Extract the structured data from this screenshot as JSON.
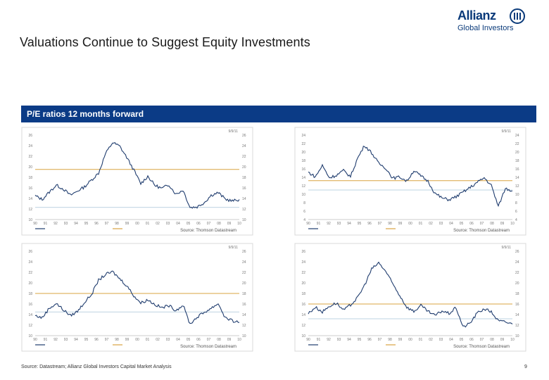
{
  "slide": {
    "title": "Valuations Continue to Suggest Equity Investments",
    "panel_title": "P/E ratios 12 months forward",
    "source": "Source: Datastream; Allianz Global Investors Capital Market Analysis",
    "page_number": "9"
  },
  "logo": {
    "brand": "Allianz",
    "sub": "Global Investors"
  },
  "colors": {
    "panel_bar": "#0b3b86",
    "series": "#1f3c6e",
    "average": "#d9a441",
    "band": "#a8c4d6"
  },
  "chart_data": [
    {
      "type": "line",
      "y_ticks": [
        "10",
        "12",
        "14",
        "16",
        "18",
        "20",
        "22",
        "24",
        "26"
      ],
      "x_ticks": [
        "90",
        "91",
        "92",
        "93",
        "94",
        "95",
        "96",
        "97",
        "98",
        "99",
        "00",
        "01",
        "02",
        "03",
        "04",
        "05",
        "06",
        "07",
        "08",
        "09",
        "10"
      ],
      "ylim": [
        10,
        26
      ],
      "average": 19.5,
      "band": 12.3,
      "corner_label": "9/9/11",
      "source_text": "Source: Thomson Datastream",
      "series": [
        {
          "values": [
            14.5,
            13.8,
            15.2,
            16.5,
            15.8,
            14.6,
            15.4,
            16.2,
            17.5,
            18.8,
            22.5,
            24.6,
            23.9,
            21.8,
            19.4,
            16.8,
            18.2,
            16.5,
            15.9,
            16.6,
            14.8,
            15.6,
            12.3,
            12.4,
            13.2,
            14.6,
            15.1,
            13.9,
            13.5,
            13.8
          ]
        }
      ]
    },
    {
      "type": "line",
      "y_ticks": [
        "4",
        "6",
        "8",
        "10",
        "12",
        "14",
        "16",
        "18",
        "20",
        "22",
        "24"
      ],
      "x_ticks": [
        "90",
        "91",
        "92",
        "93",
        "94",
        "95",
        "96",
        "97",
        "98",
        "99",
        "00",
        "01",
        "02",
        "03",
        "04",
        "05",
        "06",
        "07",
        "08",
        "09",
        "10"
      ],
      "ylim": [
        4,
        24
      ],
      "average": 13.2,
      "band": 11.0,
      "corner_label": "9/9/11",
      "source_text": "Source: Thomson Datastream",
      "series": [
        {
          "values": [
            15.2,
            14.1,
            16.8,
            13.9,
            14.5,
            15.6,
            14.2,
            18.5,
            21.6,
            19.8,
            17.3,
            16.2,
            13.8,
            14.1,
            13.1,
            15.6,
            14.3,
            13.1,
            10.2,
            9.1,
            8.7,
            9.4,
            10.5,
            11.6,
            12.8,
            13.9,
            12.1,
            7.1,
            11.4,
            10.8
          ]
        }
      ]
    },
    {
      "type": "line",
      "y_ticks": [
        "10",
        "12",
        "14",
        "16",
        "18",
        "20",
        "22",
        "24",
        "26"
      ],
      "x_ticks": [
        "90",
        "91",
        "92",
        "93",
        "94",
        "95",
        "96",
        "97",
        "98",
        "99",
        "00",
        "01",
        "02",
        "03",
        "04",
        "05",
        "06",
        "07",
        "08",
        "09",
        "10"
      ],
      "ylim": [
        10,
        26
      ],
      "average": 18.0,
      "band": 14.5,
      "corner_label": "9/9/11",
      "source_text": "Source: Thomson Datastream",
      "series": [
        {
          "values": [
            13.8,
            13.4,
            15.2,
            16.1,
            14.9,
            13.8,
            14.6,
            16.3,
            17.8,
            20.5,
            21.6,
            22.1,
            20.8,
            19.5,
            17.6,
            16.2,
            16.8,
            15.9,
            15.3,
            15.7,
            14.8,
            15.8,
            12.2,
            13.5,
            14.4,
            15.2,
            16.1,
            13.4,
            12.8,
            12.5
          ]
        }
      ]
    },
    {
      "type": "line",
      "y_ticks": [
        "10",
        "12",
        "14",
        "16",
        "18",
        "20",
        "22",
        "24",
        "26"
      ],
      "x_ticks": [
        "90",
        "91",
        "92",
        "93",
        "94",
        "95",
        "96",
        "97",
        "98",
        "99",
        "00",
        "01",
        "02",
        "03",
        "04",
        "05",
        "06",
        "07",
        "08",
        "09",
        "10"
      ],
      "ylim": [
        10,
        26
      ],
      "average": 16.0,
      "band": 13.2,
      "corner_label": "9/9/11",
      "source_text": "Source: Thomson Datastream",
      "series": [
        {
          "values": [
            14.2,
            15.4,
            14.5,
            15.6,
            16.2,
            14.8,
            15.8,
            17.2,
            19.6,
            22.6,
            23.8,
            22.2,
            19.8,
            17.6,
            15.4,
            14.6,
            15.7,
            14.6,
            13.8,
            14.7,
            14.2,
            15.3,
            11.6,
            12.4,
            14.3,
            15.1,
            14.5,
            12.8,
            12.6,
            12.2
          ]
        }
      ]
    }
  ]
}
